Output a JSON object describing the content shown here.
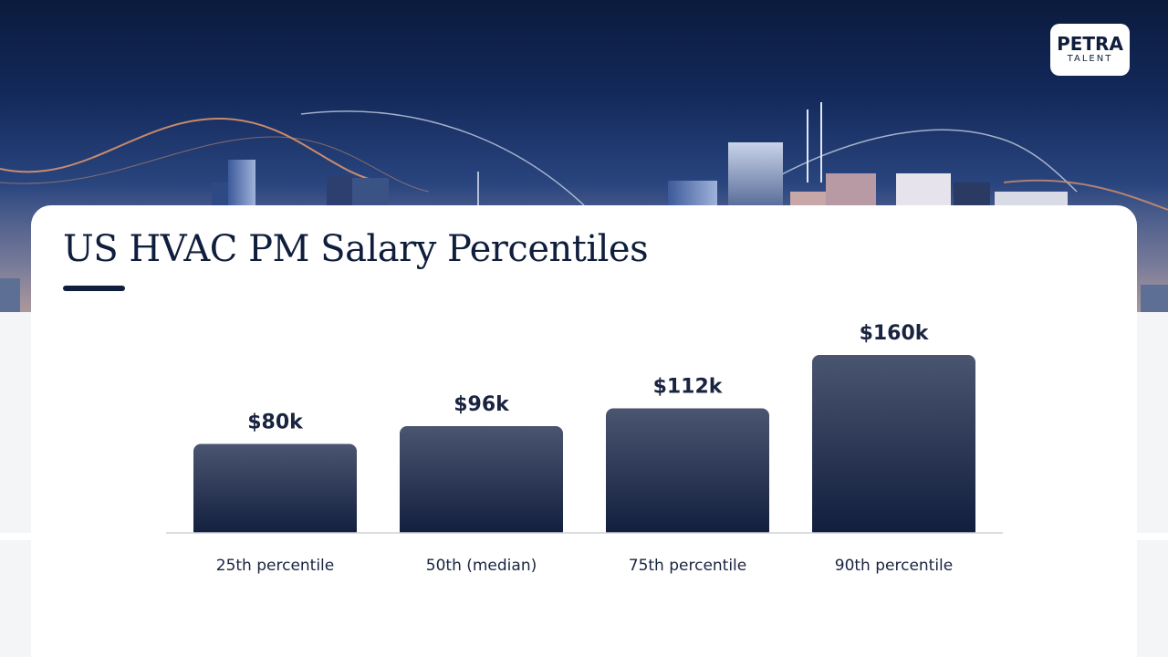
{
  "brand": {
    "logo_main": "PETRA",
    "logo_sub": "TALENT"
  },
  "slide": {
    "title": "US HVAC PM Salary Percentiles"
  },
  "colors": {
    "bar_top": "#4a5570",
    "bar_bottom": "#0f1c3b",
    "title": "#0f1e3c",
    "baseline": "#cfd2d8"
  },
  "chart_data": {
    "type": "bar",
    "categories": [
      "25th percentile",
      "50th (median)",
      "75th percentile",
      "90th percentile"
    ],
    "values": [
      80,
      96,
      112,
      160
    ],
    "value_labels": [
      "$80k",
      "$96k",
      "$112k",
      "$160k"
    ],
    "ylim": [
      0,
      160
    ],
    "grid": false,
    "legend": "none"
  }
}
